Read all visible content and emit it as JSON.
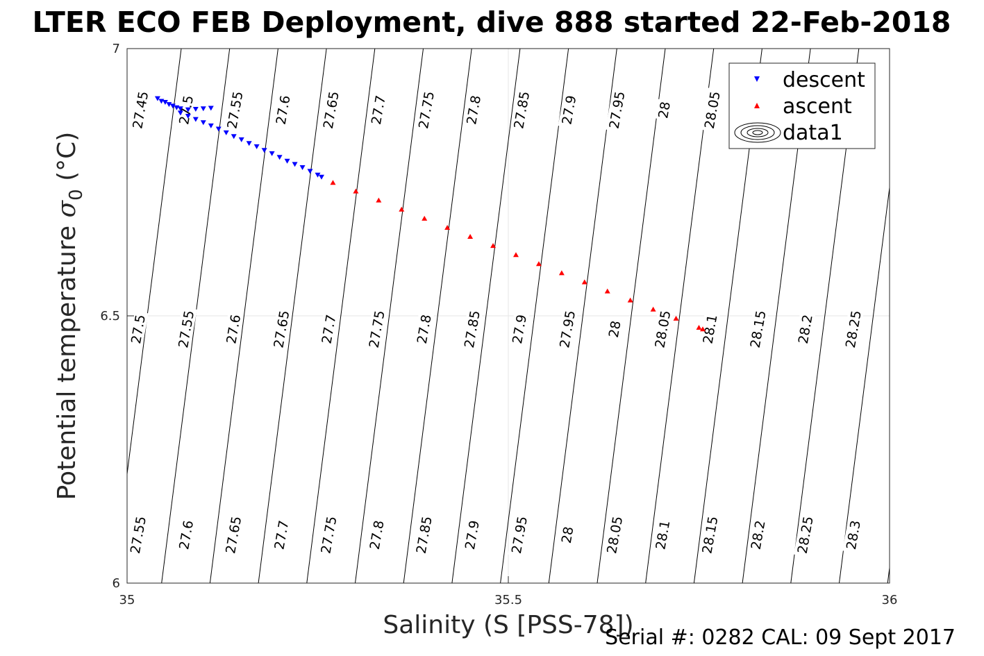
{
  "figure": {
    "title": "LTER ECO FEB Deployment, dive 888 started 22-Feb-2018",
    "footer": "Serial #: 0282  CAL: 09 Sept 2017"
  },
  "chart_data": {
    "type": "scatter",
    "xlabel": "Salinity (S [PSS-78])",
    "ylabel_prefix": "Potential temperature ",
    "ylabel_symbol": "σ",
    "ylabel_subscript": "0",
    "ylabel_suffix": " (°C)",
    "xlim": [
      35,
      36
    ],
    "ylim": [
      6,
      7
    ],
    "xticks": [
      35,
      35.5,
      36
    ],
    "xtick_labels": [
      "35",
      "35.5",
      "36"
    ],
    "yticks": [
      6,
      6.5,
      7
    ],
    "ytick_labels": [
      "6",
      "6.5",
      "7"
    ],
    "grid": true,
    "legend_position": "top-right",
    "legend": [
      "descent",
      "ascent",
      "data1"
    ],
    "series": [
      {
        "name": "descent",
        "marker": "triangle-down",
        "color": "#0000ff",
        "points": [
          {
            "x": 35.04,
            "y": 6.907
          },
          {
            "x": 35.05,
            "y": 6.9
          },
          {
            "x": 35.06,
            "y": 6.893
          },
          {
            "x": 35.07,
            "y": 6.888
          },
          {
            "x": 35.08,
            "y": 6.886
          },
          {
            "x": 35.09,
            "y": 6.887
          },
          {
            "x": 35.1,
            "y": 6.888
          },
          {
            "x": 35.11,
            "y": 6.889
          },
          {
            "x": 35.045,
            "y": 6.902
          },
          {
            "x": 35.055,
            "y": 6.896
          },
          {
            "x": 35.065,
            "y": 6.89
          },
          {
            "x": 35.07,
            "y": 6.88
          },
          {
            "x": 35.08,
            "y": 6.874
          },
          {
            "x": 35.09,
            "y": 6.868
          },
          {
            "x": 35.1,
            "y": 6.862
          },
          {
            "x": 35.11,
            "y": 6.856
          },
          {
            "x": 35.12,
            "y": 6.85
          },
          {
            "x": 35.13,
            "y": 6.843
          },
          {
            "x": 35.14,
            "y": 6.836
          },
          {
            "x": 35.15,
            "y": 6.83
          },
          {
            "x": 35.16,
            "y": 6.823
          },
          {
            "x": 35.17,
            "y": 6.817
          },
          {
            "x": 35.18,
            "y": 6.81
          },
          {
            "x": 35.19,
            "y": 6.804
          },
          {
            "x": 35.2,
            "y": 6.797
          },
          {
            "x": 35.21,
            "y": 6.79
          },
          {
            "x": 35.22,
            "y": 6.784
          },
          {
            "x": 35.23,
            "y": 6.778
          },
          {
            "x": 35.24,
            "y": 6.771
          },
          {
            "x": 35.25,
            "y": 6.764
          },
          {
            "x": 35.255,
            "y": 6.76
          }
        ]
      },
      {
        "name": "ascent",
        "marker": "triangle-up",
        "color": "#ff0000",
        "points": [
          {
            "x": 35.27,
            "y": 6.749
          },
          {
            "x": 35.3,
            "y": 6.733
          },
          {
            "x": 35.33,
            "y": 6.716
          },
          {
            "x": 35.36,
            "y": 6.699
          },
          {
            "x": 35.39,
            "y": 6.682
          },
          {
            "x": 35.42,
            "y": 6.665
          },
          {
            "x": 35.45,
            "y": 6.648
          },
          {
            "x": 35.48,
            "y": 6.631
          },
          {
            "x": 35.51,
            "y": 6.614
          },
          {
            "x": 35.54,
            "y": 6.597
          },
          {
            "x": 35.57,
            "y": 6.58
          },
          {
            "x": 35.6,
            "y": 6.563
          },
          {
            "x": 35.63,
            "y": 6.546
          },
          {
            "x": 35.66,
            "y": 6.529
          },
          {
            "x": 35.69,
            "y": 6.512
          },
          {
            "x": 35.72,
            "y": 6.495
          },
          {
            "x": 35.75,
            "y": 6.478
          },
          {
            "x": 35.755,
            "y": 6.475
          }
        ]
      }
    ],
    "contour_labels": [
      {
        "value": "27.45",
        "x": 35.018,
        "y": 6.885
      },
      {
        "value": "27.5",
        "x": 35.078,
        "y": 6.885
      },
      {
        "value": "27.55",
        "x": 35.142,
        "y": 6.885
      },
      {
        "value": "27.6",
        "x": 35.205,
        "y": 6.885
      },
      {
        "value": "27.65",
        "x": 35.268,
        "y": 6.885
      },
      {
        "value": "27.7",
        "x": 35.33,
        "y": 6.885
      },
      {
        "value": "27.75",
        "x": 35.393,
        "y": 6.885
      },
      {
        "value": "27.8",
        "x": 35.455,
        "y": 6.885
      },
      {
        "value": "27.85",
        "x": 35.518,
        "y": 6.885
      },
      {
        "value": "27.9",
        "x": 35.58,
        "y": 6.885
      },
      {
        "value": "27.95",
        "x": 35.643,
        "y": 6.885
      },
      {
        "value": "28",
        "x": 35.705,
        "y": 6.885
      },
      {
        "value": "28.05",
        "x": 35.768,
        "y": 6.885
      },
      {
        "value": "27.5",
        "x": 35.015,
        "y": 6.475
      },
      {
        "value": "27.55",
        "x": 35.078,
        "y": 6.475
      },
      {
        "value": "27.6",
        "x": 35.14,
        "y": 6.475
      },
      {
        "value": "27.65",
        "x": 35.203,
        "y": 6.475
      },
      {
        "value": "27.7",
        "x": 35.265,
        "y": 6.475
      },
      {
        "value": "27.75",
        "x": 35.328,
        "y": 6.475
      },
      {
        "value": "27.8",
        "x": 35.39,
        "y": 6.475
      },
      {
        "value": "27.85",
        "x": 35.453,
        "y": 6.475
      },
      {
        "value": "27.9",
        "x": 35.515,
        "y": 6.475
      },
      {
        "value": "27.95",
        "x": 35.578,
        "y": 6.475
      },
      {
        "value": "28",
        "x": 35.64,
        "y": 6.475
      },
      {
        "value": "28.05",
        "x": 35.703,
        "y": 6.475
      },
      {
        "value": "28.1",
        "x": 35.765,
        "y": 6.475
      },
      {
        "value": "28.15",
        "x": 35.828,
        "y": 6.475
      },
      {
        "value": "28.2",
        "x": 35.89,
        "y": 6.475
      },
      {
        "value": "28.25",
        "x": 35.953,
        "y": 6.475
      },
      {
        "value": "27.55",
        "x": 35.015,
        "y": 6.09
      },
      {
        "value": "27.6",
        "x": 35.078,
        "y": 6.09
      },
      {
        "value": "27.65",
        "x": 35.14,
        "y": 6.09
      },
      {
        "value": "27.7",
        "x": 35.203,
        "y": 6.09
      },
      {
        "value": "27.75",
        "x": 35.265,
        "y": 6.09
      },
      {
        "value": "27.8",
        "x": 35.328,
        "y": 6.09
      },
      {
        "value": "27.85",
        "x": 35.39,
        "y": 6.09
      },
      {
        "value": "27.9",
        "x": 35.453,
        "y": 6.09
      },
      {
        "value": "27.95",
        "x": 35.515,
        "y": 6.09
      },
      {
        "value": "28",
        "x": 35.578,
        "y": 6.09
      },
      {
        "value": "28.05",
        "x": 35.64,
        "y": 6.09
      },
      {
        "value": "28.1",
        "x": 35.703,
        "y": 6.09
      },
      {
        "value": "28.15",
        "x": 35.765,
        "y": 6.09
      },
      {
        "value": "28.2",
        "x": 35.828,
        "y": 6.09
      },
      {
        "value": "28.25",
        "x": 35.89,
        "y": 6.09
      },
      {
        "value": "28.3",
        "x": 35.953,
        "y": 6.09
      }
    ]
  }
}
